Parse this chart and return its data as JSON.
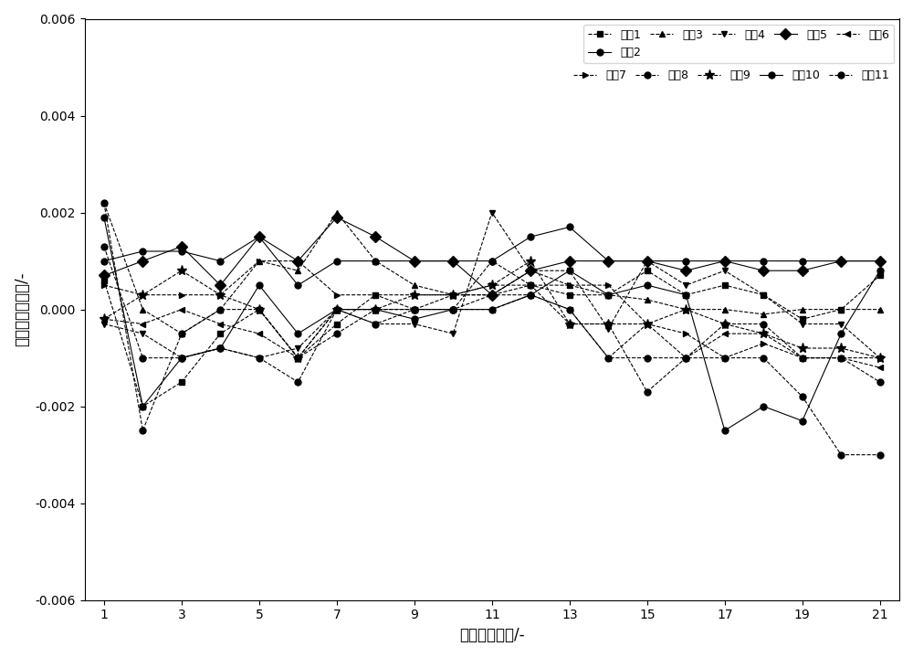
{
  "x": [
    1,
    2,
    3,
    4,
    5,
    6,
    7,
    8,
    9,
    10,
    11,
    12,
    13,
    14,
    15,
    16,
    17,
    18,
    19,
    20,
    21
  ],
  "channels": {
    "通道1": [
      0.0006,
      -0.002,
      -0.0015,
      -0.0005,
      0.0,
      -0.001,
      -0.0003,
      0.0003,
      0.0,
      0.0003,
      0.0003,
      0.0005,
      0.0003,
      0.0003,
      0.0008,
      0.0003,
      0.0005,
      0.0003,
      -0.0002,
      0.0,
      0.0007
    ],
    "通道2": [
      0.0019,
      -0.002,
      -0.001,
      -0.0008,
      0.0005,
      -0.0005,
      0.0,
      0.0,
      -0.0002,
      0.0,
      0.0,
      0.0003,
      0.0008,
      0.0003,
      0.0005,
      0.0003,
      -0.0025,
      -0.002,
      -0.0023,
      -0.0005,
      0.0008
    ],
    "通道3": [
      0.0022,
      0.0,
      -0.0005,
      0.0,
      0.001,
      0.0008,
      0.002,
      0.001,
      0.0005,
      0.0003,
      0.0003,
      0.0008,
      0.0005,
      0.0003,
      0.0002,
      0.0,
      0.0,
      -0.0001,
      0.0,
      0.0,
      0.0
    ],
    "通道4": [
      -0.0003,
      -0.0005,
      -0.001,
      -0.0008,
      -0.001,
      -0.0008,
      0.0,
      -0.0003,
      -0.0003,
      -0.0005,
      0.002,
      0.0008,
      0.0008,
      -0.0004,
      0.001,
      0.0005,
      0.0008,
      0.0003,
      -0.0003,
      -0.0003,
      -0.001
    ],
    "通道5": [
      0.0007,
      0.001,
      0.0013,
      0.0005,
      0.0015,
      0.001,
      0.0019,
      0.0015,
      0.001,
      0.001,
      0.0003,
      0.0008,
      0.001,
      0.001,
      0.001,
      0.0008,
      0.001,
      0.0008,
      0.0008,
      0.001,
      0.001
    ],
    "通道6": [
      -0.0002,
      -0.0003,
      0.0,
      -0.0003,
      -0.0005,
      -0.001,
      0.0,
      0.0,
      0.0,
      0.0,
      0.0,
      0.0003,
      0.0,
      -0.001,
      -0.0003,
      -0.001,
      -0.0005,
      -0.0005,
      -0.001,
      -0.001,
      -0.0012
    ],
    "通道7": [
      0.0005,
      0.0003,
      0.0003,
      0.0003,
      0.001,
      0.001,
      0.0003,
      0.0003,
      0.0003,
      0.0003,
      0.0005,
      0.0005,
      0.0005,
      0.0005,
      -0.0003,
      -0.0005,
      -0.001,
      -0.0007,
      -0.001,
      -0.001,
      -0.001
    ],
    "通道8": [
      0.0013,
      -0.001,
      -0.001,
      -0.0008,
      -0.001,
      -0.0015,
      0.0,
      -0.0003,
      0.0,
      0.0,
      0.0003,
      0.0003,
      0.0,
      -0.001,
      -0.001,
      -0.001,
      -0.0003,
      -0.0003,
      -0.001,
      -0.001,
      -0.0015
    ],
    "通道9": [
      -0.0002,
      0.0003,
      0.0008,
      0.0003,
      0.0,
      -0.001,
      0.0,
      0.0,
      0.0003,
      0.0003,
      0.0005,
      0.001,
      -0.0003,
      -0.0003,
      -0.0003,
      0.0,
      -0.0003,
      -0.0005,
      -0.0008,
      -0.0008,
      -0.001
    ],
    "通道10": [
      0.001,
      0.0012,
      0.0012,
      0.001,
      0.0015,
      0.0005,
      0.001,
      0.001,
      0.001,
      0.001,
      0.001,
      0.0015,
      0.0017,
      0.001,
      0.001,
      0.001,
      0.001,
      0.001,
      0.001,
      0.001,
      0.001
    ],
    "通道11": [
      0.0022,
      -0.0025,
      -0.0005,
      0.0,
      0.0,
      -0.001,
      -0.0005,
      0.0,
      0.0,
      0.0,
      0.001,
      0.0005,
      -0.0003,
      -0.0003,
      -0.0017,
      -0.001,
      -0.001,
      -0.001,
      -0.0018,
      -0.003,
      -0.003
    ]
  },
  "markers": {
    "通道1": "s",
    "通道2": "o",
    "通道3": "^",
    "通道4": "v",
    "通道5": "D",
    "通道6": "<",
    "通道7": ">",
    "通道8": "o",
    "通道9": "*",
    "通道10": "o",
    "通道11": "o"
  },
  "colors": {
    "通道1": "#7B52AB",
    "通道2": "#000000",
    "通道3": "#000000",
    "通道4": "#000000",
    "通道5": "#000000",
    "通道6": "#7B52AB",
    "通道7": "#000000",
    "通道8": "#000000",
    "通道9": "#000000",
    "通道10": "#000000",
    "通道11": "#000000"
  },
  "linestyles": {
    "通道1": "--",
    "通道2": "-",
    "通道3": "--",
    "通道4": "--",
    "通道5": "-",
    "通道6": "--",
    "通道7": "--",
    "通道8": "--",
    "通道9": "--",
    "通道10": "-",
    "通道11": "--"
  },
  "xlabel": "测试次数序号/-",
  "ylabel": "吸光度动态偏差/-",
  "xlim": [
    0.5,
    21.5
  ],
  "ylim": [
    -0.006,
    0.006
  ],
  "xticks": [
    1,
    3,
    5,
    7,
    9,
    11,
    13,
    15,
    17,
    19,
    21
  ],
  "yticks": [
    -0.006,
    -0.004,
    -0.002,
    0.0,
    0.002,
    0.004,
    0.006
  ],
  "legend_order": [
    "通道1",
    "通道2",
    "通道3",
    "通道4",
    "通道5",
    "通道6",
    "通道7",
    "通道8",
    "通道9",
    "通道10",
    "通道11"
  ]
}
